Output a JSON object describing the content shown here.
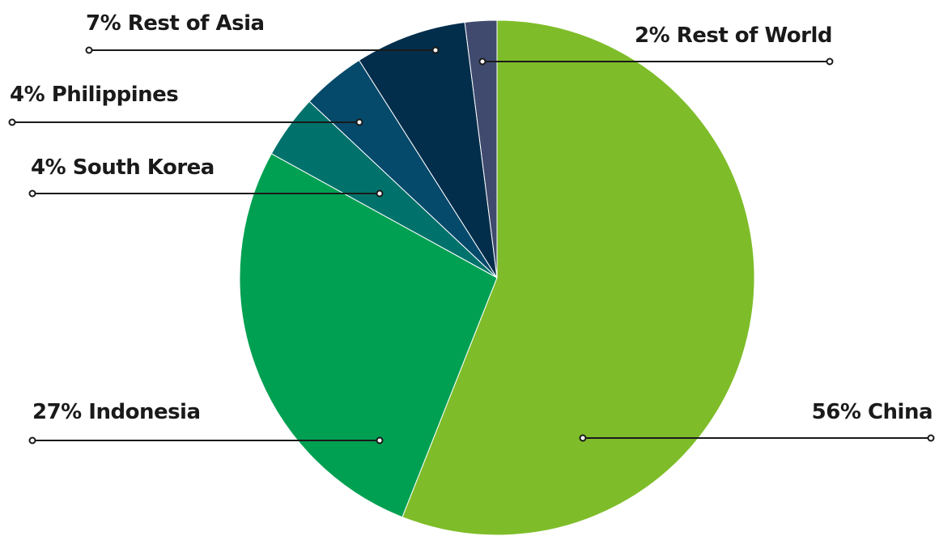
{
  "chart_data": {
    "type": "pie",
    "start": "12 o'clock",
    "direction": "clockwise",
    "legend": "none (callout labels with leader lines)",
    "slices": [
      {
        "label": "56% China",
        "value": 56,
        "color": "#7ebd29"
      },
      {
        "label": "27% Indonesia",
        "value": 27,
        "color": "#00a052"
      },
      {
        "label": "4% South Korea",
        "value": 4,
        "color": "#00726b"
      },
      {
        "label": "4% Philippines",
        "value": 4,
        "color": "#05496b"
      },
      {
        "label": "7% Rest of Asia",
        "value": 7,
        "color": "#032e4b"
      },
      {
        "label": "2% Rest of World",
        "value": 2,
        "color": "#3f4a6e"
      }
    ]
  }
}
